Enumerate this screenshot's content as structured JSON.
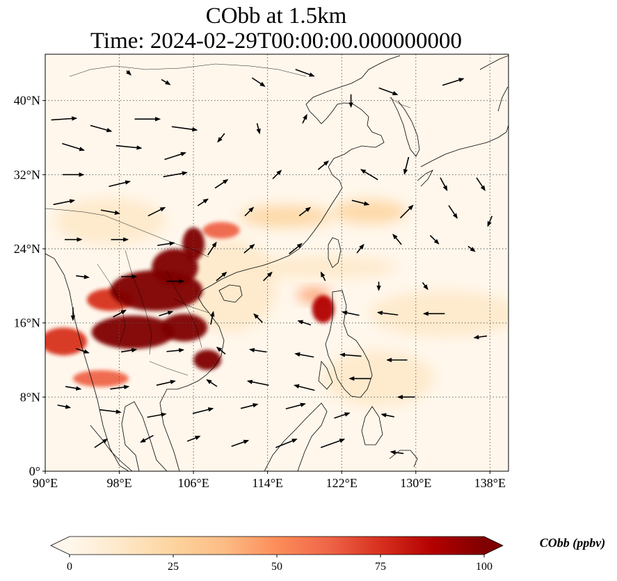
{
  "title_line1": "CObb at 1.5km",
  "title_line2": "Time: 2024-02-29T00:00:00.000000000",
  "map": {
    "lon_range": [
      90,
      140
    ],
    "lat_range": [
      0,
      45
    ],
    "lon_ticks": [
      {
        "value": 90,
        "label": "90°E"
      },
      {
        "value": 98,
        "label": "98°E"
      },
      {
        "value": 106,
        "label": "106°E"
      },
      {
        "value": 114,
        "label": "114°E"
      },
      {
        "value": 122,
        "label": "122°E"
      },
      {
        "value": 130,
        "label": "130°E"
      },
      {
        "value": 138,
        "label": "138°E"
      }
    ],
    "lat_ticks": [
      {
        "value": 0,
        "label": "0°"
      },
      {
        "value": 8,
        "label": "8°N"
      },
      {
        "value": 16,
        "label": "16°N"
      },
      {
        "value": 24,
        "label": "24°N"
      },
      {
        "value": 32,
        "label": "32°N"
      },
      {
        "value": 40,
        "label": "40°N"
      }
    ],
    "gridlines": "dotted",
    "variable": "CObb",
    "units": "ppbv",
    "plume_regions": [
      {
        "lon": 102,
        "lat": 19.5,
        "rx": 5,
        "ry": 2.2,
        "level": 100
      },
      {
        "lon": 104,
        "lat": 22,
        "rx": 2.5,
        "ry": 2,
        "level": 100
      },
      {
        "lon": 106,
        "lat": 24.5,
        "rx": 1.2,
        "ry": 1.8,
        "level": 95
      },
      {
        "lon": 99.5,
        "lat": 15,
        "rx": 4.5,
        "ry": 1.8,
        "level": 95
      },
      {
        "lon": 105,
        "lat": 15.5,
        "rx": 2.5,
        "ry": 1.5,
        "level": 100
      },
      {
        "lon": 107.5,
        "lat": 12,
        "rx": 1.5,
        "ry": 1.1,
        "level": 95
      },
      {
        "lon": 92,
        "lat": 14,
        "rx": 2.5,
        "ry": 1.5,
        "level": 70
      },
      {
        "lon": 97,
        "lat": 18.5,
        "rx": 2.5,
        "ry": 1.2,
        "level": 75
      },
      {
        "lon": 109,
        "lat": 26,
        "rx": 2,
        "ry": 0.9,
        "level": 65
      },
      {
        "lon": 96,
        "lat": 10,
        "rx": 3,
        "ry": 0.9,
        "level": 60
      },
      {
        "lon": 120,
        "lat": 17.5,
        "rx": 1.2,
        "ry": 1.5,
        "level": 85
      },
      {
        "lon": 119,
        "lat": 19,
        "rx": 1.8,
        "ry": 0.7,
        "level": 50
      },
      {
        "lon": 116,
        "lat": 27.5,
        "rx": 5,
        "ry": 1.2,
        "level": 30
      },
      {
        "lon": 125,
        "lat": 28,
        "rx": 4,
        "ry": 1.3,
        "level": 22
      },
      {
        "lon": 120,
        "lat": 22,
        "rx": 8,
        "ry": 1.2,
        "level": 15
      },
      {
        "lon": 133,
        "lat": 17,
        "rx": 8,
        "ry": 2.5,
        "level": 12
      },
      {
        "lon": 110,
        "lat": 20,
        "rx": 5,
        "ry": 5,
        "level": 18
      },
      {
        "lon": 97,
        "lat": 27,
        "rx": 6,
        "ry": 2.5,
        "level": 14
      },
      {
        "lon": 126,
        "lat": 10,
        "rx": 6,
        "ry": 3,
        "level": 10
      }
    ],
    "wind_vectors": [
      [
        92,
        38,
        3,
        0.2
      ],
      [
        96,
        37,
        2.5,
        -0.7
      ],
      [
        101,
        38,
        3,
        0
      ],
      [
        105,
        37,
        3,
        -0.4
      ],
      [
        93,
        35,
        2.6,
        -0.8
      ],
      [
        99,
        35,
        3,
        -0.3
      ],
      [
        104,
        34,
        2.5,
        0.8
      ],
      [
        109,
        36,
        -0.8,
        -1
      ],
      [
        113,
        37,
        0.3,
        -1.2
      ],
      [
        118,
        38,
        0.5,
        1
      ],
      [
        123,
        40,
        0,
        -1.5
      ],
      [
        127,
        41,
        2.2,
        -0.8
      ],
      [
        93,
        32,
        2.5,
        0
      ],
      [
        98,
        31,
        2.5,
        0.6
      ],
      [
        104,
        32,
        2.8,
        0.5
      ],
      [
        109,
        31,
        1.5,
        1
      ],
      [
        115,
        32,
        1,
        1
      ],
      [
        120,
        33,
        1.2,
        1
      ],
      [
        125,
        32,
        -2,
        1.2
      ],
      [
        129,
        33,
        -0.5,
        -2
      ],
      [
        133,
        31,
        0.8,
        -1.5
      ],
      [
        137,
        31,
        1,
        -1.5
      ],
      [
        92,
        29,
        2.5,
        0.5
      ],
      [
        97,
        28,
        2.2,
        -0.4
      ],
      [
        102,
        28,
        2,
        1
      ],
      [
        107,
        29,
        1.2,
        0.8
      ],
      [
        112,
        28,
        1,
        1
      ],
      [
        118,
        28,
        1.3,
        1
      ],
      [
        124,
        29,
        2,
        -0.5
      ],
      [
        129,
        28,
        1.5,
        1.5
      ],
      [
        134,
        28,
        1,
        -1.5
      ],
      [
        138,
        27,
        -0.5,
        -1.2
      ],
      [
        93,
        25,
        2,
        0
      ],
      [
        98,
        25,
        2,
        0
      ],
      [
        103,
        24.5,
        2,
        0.3
      ],
      [
        108,
        24,
        1,
        1.5
      ],
      [
        112,
        24,
        1.2,
        1
      ],
      [
        117,
        24,
        1.5,
        1.2
      ],
      [
        124,
        24,
        0.8,
        1
      ],
      [
        128,
        25,
        -1,
        1.2
      ],
      [
        132,
        25,
        1,
        -1
      ],
      [
        136,
        24,
        0.8,
        -0.6
      ],
      [
        94,
        21,
        1.5,
        -0.2
      ],
      [
        99,
        21,
        1.8,
        0
      ],
      [
        104,
        20.5,
        2,
        0
      ],
      [
        109,
        21,
        1.2,
        1
      ],
      [
        114,
        21,
        1,
        1
      ],
      [
        120,
        21,
        -0.5,
        1
      ],
      [
        126,
        20,
        0,
        -1
      ],
      [
        131,
        20,
        0.6,
        -0.8
      ],
      [
        93,
        17,
        0,
        -1.5
      ],
      [
        98,
        17,
        1.5,
        0.8
      ],
      [
        103,
        17,
        1.6,
        0.5
      ],
      [
        108,
        16.5,
        0.3,
        1.5
      ],
      [
        113,
        16.5,
        -1,
        1
      ],
      [
        118,
        16,
        -1.5,
        0.5
      ],
      [
        123,
        17,
        -2,
        0.4
      ],
      [
        127,
        17,
        -2.4,
        0.3
      ],
      [
        132,
        17,
        -2.5,
        0
      ],
      [
        137,
        14.5,
        -1.5,
        -0.2
      ],
      [
        94,
        13,
        1.5,
        -0.5
      ],
      [
        99,
        13,
        1.8,
        0.3
      ],
      [
        104,
        13,
        2,
        0.2
      ],
      [
        109,
        13,
        -1,
        0.8
      ],
      [
        113,
        13,
        -2,
        0.3
      ],
      [
        118,
        12.5,
        -2.2,
        0.4
      ],
      [
        123,
        12.5,
        -2.5,
        0.2
      ],
      [
        128,
        12,
        -2.4,
        0
      ],
      [
        93,
        9,
        1.8,
        -0.3
      ],
      [
        98,
        9,
        2.2,
        0.3
      ],
      [
        103,
        9.5,
        2.2,
        0.5
      ],
      [
        108,
        9.5,
        -1.2,
        0.8
      ],
      [
        113,
        9.5,
        -2.5,
        0.5
      ],
      [
        118,
        9,
        -2.4,
        0.6
      ],
      [
        124,
        10,
        -2.5,
        0
      ],
      [
        129,
        8,
        -2,
        0
      ],
      [
        92,
        7,
        1.5,
        -0.3
      ],
      [
        97,
        6.5,
        2.5,
        -0.3
      ],
      [
        102,
        6,
        2.2,
        0.4
      ],
      [
        107,
        6.5,
        2.4,
        0.6
      ],
      [
        112,
        7,
        2,
        0.5
      ],
      [
        117,
        7,
        2.3,
        0.6
      ],
      [
        122,
        6,
        1.8,
        0.6
      ],
      [
        127,
        6,
        -1.5,
        0.3
      ],
      [
        96,
        3,
        1.5,
        1
      ],
      [
        101,
        3.5,
        -1.5,
        -0.8
      ],
      [
        106,
        3.5,
        1.5,
        0.6
      ],
      [
        111,
        3,
        2,
        0.7
      ],
      [
        116,
        3,
        2.5,
        1
      ],
      [
        121,
        3,
        2.8,
        1
      ],
      [
        128,
        2,
        -1.5,
        0.2
      ],
      [
        134,
        42,
        2.5,
        0.8
      ],
      [
        113,
        42,
        1.5,
        -1
      ],
      [
        99,
        43,
        0.5,
        -0.5
      ],
      [
        103,
        42,
        1,
        -0.6
      ],
      [
        118,
        43,
        2.2,
        -0.8
      ]
    ]
  },
  "colorbar": {
    "label": "CObb (ppbv)",
    "min": 0,
    "max": 100,
    "extend": "both",
    "ticks": [
      {
        "value": 0,
        "label": "0"
      },
      {
        "value": 25,
        "label": "25"
      },
      {
        "value": 50,
        "label": "50"
      },
      {
        "value": 75,
        "label": "75"
      },
      {
        "value": 100,
        "label": "100"
      }
    ],
    "colors": [
      "#fff7ec",
      "#fee8c8",
      "#fdd49e",
      "#fdbb84",
      "#fc8d59",
      "#ef6548",
      "#d7301f",
      "#b30000",
      "#7f0000"
    ]
  }
}
